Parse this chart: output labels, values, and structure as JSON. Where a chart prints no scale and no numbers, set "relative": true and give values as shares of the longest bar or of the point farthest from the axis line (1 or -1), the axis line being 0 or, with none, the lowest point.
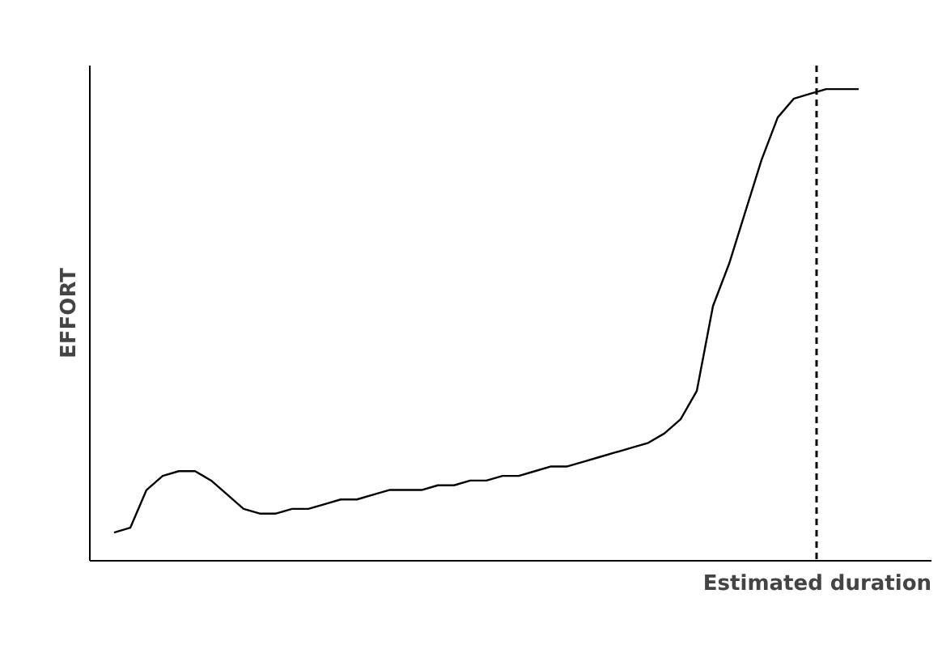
{
  "chart_data": {
    "type": "line",
    "ylabel": "EFFORT",
    "relative": true,
    "color": "#000000",
    "line_style": "solid",
    "categories": [
      null,
      null,
      null,
      null,
      null,
      null,
      null,
      null,
      null,
      null,
      null,
      null,
      null,
      null,
      null,
      null,
      null,
      null,
      null,
      null,
      null,
      null,
      null,
      null,
      null,
      null,
      null,
      null,
      null,
      null,
      null,
      null,
      null,
      null,
      null,
      null,
      null,
      null,
      null,
      null,
      null,
      null,
      null,
      null,
      null,
      null,
      null
    ],
    "values": [
      0.06,
      0.07,
      0.15,
      0.18,
      0.19,
      0.19,
      0.17,
      0.14,
      0.11,
      0.1,
      0.1,
      0.11,
      0.11,
      0.12,
      0.13,
      0.13,
      0.14,
      0.15,
      0.15,
      0.15,
      0.16,
      0.16,
      0.17,
      0.17,
      0.18,
      0.18,
      0.19,
      0.2,
      0.2,
      0.21,
      0.22,
      0.23,
      0.24,
      0.25,
      0.27,
      0.3,
      0.36,
      0.54,
      0.63,
      0.74,
      0.85,
      0.94,
      0.98,
      0.99,
      1.0,
      1.0,
      1.0
    ],
    "annotations": [
      "Estimated duration"
    ]
  }
}
